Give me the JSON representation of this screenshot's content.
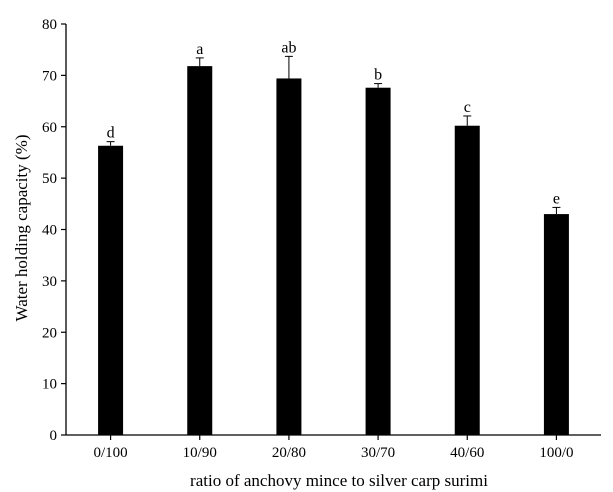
{
  "chart_data": {
    "type": "bar",
    "title": "",
    "xlabel": "ratio of anchovy mince to silver carp surimi",
    "ylabel": "Water holding capacity (%)",
    "categories": [
      "0/100",
      "10/90",
      "20/80",
      "30/70",
      "40/60",
      "100/0"
    ],
    "values": [
      56.3,
      71.8,
      69.4,
      67.6,
      60.2,
      43.0
    ],
    "errors": [
      0.8,
      1.6,
      4.3,
      0.8,
      1.9,
      1.3
    ],
    "significance_labels": [
      "d",
      "a",
      "ab",
      "b",
      "c",
      "e"
    ],
    "ylim": [
      0,
      80
    ],
    "yticks": [
      0,
      10,
      20,
      30,
      40,
      50,
      60,
      70,
      80
    ],
    "grid": false,
    "legend": "none",
    "bar_color": "#000000"
  }
}
